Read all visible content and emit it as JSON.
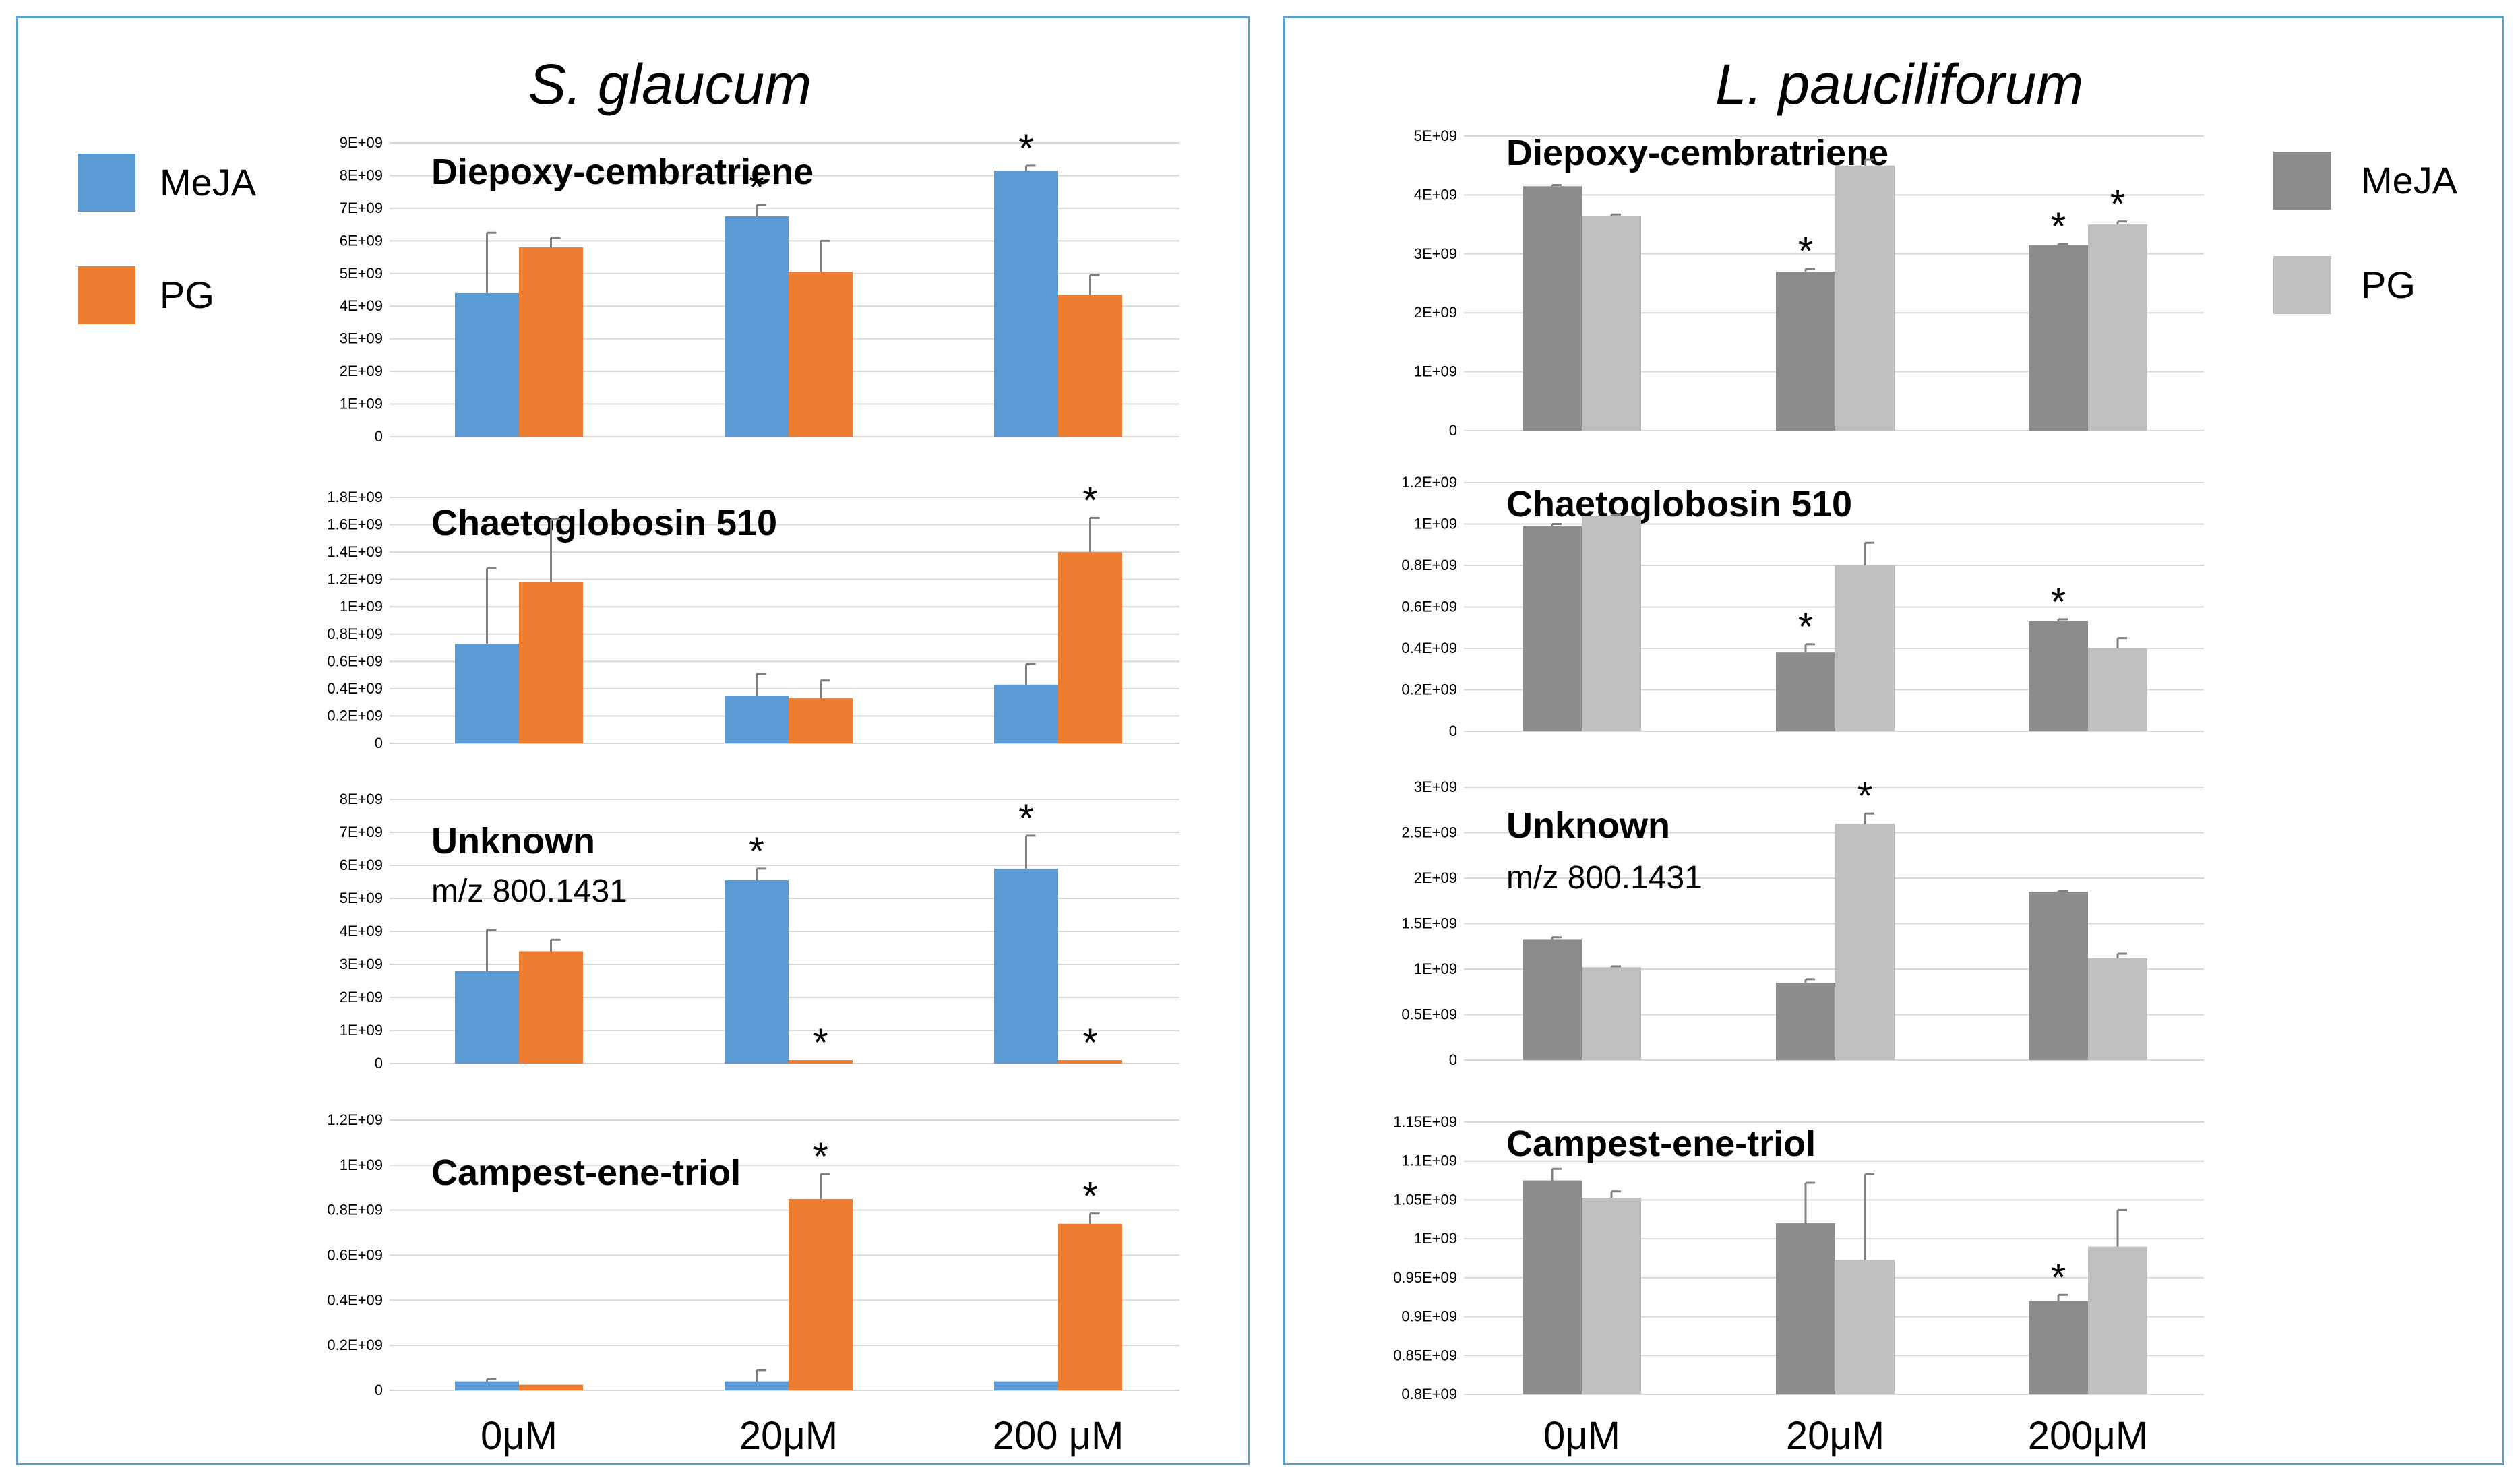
{
  "left_panel": {
    "title": "S. glaucum",
    "legend": [
      {
        "label": "MeJA",
        "color": "#5b9bd5"
      },
      {
        "label": "PG",
        "color": "#ed7d31"
      }
    ],
    "colors": [
      "#5b9bd5",
      "#ed7d31"
    ],
    "categories": [
      "0μM",
      "20μM",
      "200 μM"
    ]
  },
  "right_panel": {
    "title": "L. pauciliforum",
    "legend": [
      {
        "label": "MeJA",
        "color": "#8c8c8c"
      },
      {
        "label": "PG",
        "color": "#bfbfbf"
      }
    ],
    "colors": [
      "#8c8c8c",
      "#bfbfbf"
    ],
    "categories": [
      "0μM",
      "20μM",
      "200μM"
    ]
  },
  "chart_data": [
    {
      "type": "bar",
      "panel": "left",
      "title": "Diepoxy-cembratriene",
      "categories": [
        "0μM",
        "20μM",
        "200 μM"
      ],
      "ylim": [
        0,
        9000000000.0
      ],
      "ticks": [
        "0",
        "1E+09",
        "2E+09",
        "3E+09",
        "4E+09",
        "5E+09",
        "6E+09",
        "7E+09",
        "8E+09",
        "9E+09"
      ],
      "series": [
        {
          "name": "MeJA",
          "values": [
            4400000000.0,
            6750000000.0,
            8150000000.0
          ],
          "errors": [
            1850000000.0,
            350000000.0,
            150000000.0
          ],
          "significant": [
            false,
            true,
            true
          ]
        },
        {
          "name": "PG",
          "values": [
            5800000000.0,
            5050000000.0,
            4350000000.0
          ],
          "errors": [
            300000000.0,
            950000000.0,
            600000000.0
          ],
          "significant": [
            false,
            false,
            false
          ]
        }
      ]
    },
    {
      "type": "bar",
      "panel": "left",
      "title": "Chaetoglobosin 510",
      "categories": [
        "0μM",
        "20μM",
        "200 μM"
      ],
      "ylim": [
        0,
        1800000000.0
      ],
      "ticks": [
        "0",
        "0.2E+09",
        "0.4E+09",
        "0.6E+09",
        "0.8E+09",
        "1E+09",
        "1.2E+09",
        "1.4E+09",
        "1.6E+09",
        "1.8E+09"
      ],
      "series": [
        {
          "name": "MeJA",
          "values": [
            730000000.0,
            350000000.0,
            430000000.0
          ],
          "errors": [
            550000000.0,
            160000000.0,
            150000000.0
          ],
          "significant": [
            false,
            false,
            false
          ]
        },
        {
          "name": "PG",
          "values": [
            1180000000.0,
            330000000.0,
            1400000000.0
          ],
          "errors": [
            460000000.0,
            130000000.0,
            250000000.0
          ],
          "significant": [
            false,
            false,
            true
          ]
        }
      ]
    },
    {
      "type": "bar",
      "panel": "left",
      "title": "Unknown",
      "subtitle": "m/z 800.1431",
      "categories": [
        "0μM",
        "20μM",
        "200 μM"
      ],
      "ylim": [
        0,
        8000000000.0
      ],
      "ticks": [
        "0",
        "1E+09",
        "2E+09",
        "3E+09",
        "4E+09",
        "5E+09",
        "6E+09",
        "7E+09",
        "8E+09"
      ],
      "series": [
        {
          "name": "MeJA",
          "values": [
            2800000000.0,
            5550000000.0,
            5900000000.0
          ],
          "errors": [
            1250000000.0,
            350000000.0,
            1000000000.0
          ],
          "significant": [
            false,
            true,
            true
          ]
        },
        {
          "name": "PG",
          "values": [
            3400000000.0,
            100000000.0,
            100000000.0
          ],
          "errors": [
            350000000.0,
            0.0,
            0.0
          ],
          "significant": [
            false,
            true,
            true
          ]
        }
      ]
    },
    {
      "type": "bar",
      "panel": "left",
      "title": "Campest-ene-triol",
      "categories": [
        "0μM",
        "20μM",
        "200 μM"
      ],
      "ylim": [
        0,
        1200000000.0
      ],
      "ticks": [
        "0",
        "0.2E+09",
        "0.4E+09",
        "0.6E+09",
        "0.8E+09",
        "1E+09",
        "1.2E+09"
      ],
      "series": [
        {
          "name": "MeJA",
          "values": [
            40000000.0,
            40000000.0,
            40000000.0
          ],
          "errors": [
            10000000.0,
            50000000.0,
            0.0
          ],
          "significant": [
            false,
            false,
            false
          ]
        },
        {
          "name": "PG",
          "values": [
            25000000.0,
            850000000.0,
            740000000.0
          ],
          "errors": [
            0.0,
            110000000.0,
            45000000.0
          ],
          "significant": [
            false,
            true,
            true
          ]
        }
      ]
    },
    {
      "type": "bar",
      "panel": "right",
      "title": "Diepoxy-cembratriene",
      "categories": [
        "0μM",
        "20μM",
        "200μM"
      ],
      "ylim": [
        0,
        5000000000.0
      ],
      "ticks": [
        "0",
        "1E+09",
        "2E+09",
        "3E+09",
        "4E+09",
        "5E+09"
      ],
      "series": [
        {
          "name": "MeJA",
          "values": [
            4150000000.0,
            2700000000.0,
            3150000000.0
          ],
          "errors": [
            20000000.0,
            50000000.0,
            20000000.0
          ],
          "significant": [
            false,
            true,
            true
          ]
        },
        {
          "name": "PG",
          "values": [
            3650000000.0,
            4500000000.0,
            3500000000.0
          ],
          "errors": [
            20000000.0,
            100000000.0,
            50000000.0
          ],
          "significant": [
            false,
            false,
            true
          ]
        }
      ]
    },
    {
      "type": "bar",
      "panel": "right",
      "title": "Chaetoglobosin 510",
      "categories": [
        "0μM",
        "20μM",
        "200μM"
      ],
      "ylim": [
        0,
        1200000000.0
      ],
      "ticks": [
        "0",
        "0.2E+09",
        "0.4E+09",
        "0.6E+09",
        "0.8E+09",
        "1E+09",
        "1.2E+09"
      ],
      "series": [
        {
          "name": "MeJA",
          "values": [
            990000000.0,
            380000000.0,
            530000000.0
          ],
          "errors": [
            10000000.0,
            40000000.0,
            10000000.0
          ],
          "significant": [
            false,
            true,
            true
          ]
        },
        {
          "name": "PG",
          "values": [
            1040000000.0,
            800000000.0,
            400000000.0
          ],
          "errors": [
            5000000.0,
            110000000.0,
            50000000.0
          ],
          "significant": [
            false,
            false,
            false
          ]
        }
      ]
    },
    {
      "type": "bar",
      "panel": "right",
      "title": "Unknown",
      "subtitle": "m/z 800.1431",
      "categories": [
        "0μM",
        "20μM",
        "200μM"
      ],
      "ylim": [
        0,
        3000000000.0
      ],
      "ticks": [
        "0",
        "0.5E+09",
        "1E+09",
        "1.5E+09",
        "2E+09",
        "2.5E+09",
        "3E+09"
      ],
      "series": [
        {
          "name": "MeJA",
          "values": [
            1330000000.0,
            850000000.0,
            1850000000.0
          ],
          "errors": [
            20000000.0,
            40000000.0,
            10000000.0
          ],
          "significant": [
            false,
            false,
            false
          ]
        },
        {
          "name": "PG",
          "values": [
            1020000000.0,
            2600000000.0,
            1120000000.0
          ],
          "errors": [
            10000000.0,
            110000000.0,
            50000000.0
          ],
          "significant": [
            false,
            true,
            false
          ]
        }
      ]
    },
    {
      "type": "bar",
      "panel": "right",
      "title": "Campest-ene-triol",
      "categories": [
        "0μM",
        "20μM",
        "200μM"
      ],
      "ylim": [
        800000000.0,
        1150000000.0
      ],
      "ticks": [
        "0.8E+09",
        "0.85E+09",
        "0.9E+09",
        "0.95E+09",
        "1E+09",
        "1.05E+09",
        "1.1E+09",
        "1.15E+09"
      ],
      "series": [
        {
          "name": "MeJA",
          "values": [
            1075000000.0,
            1020000000.0,
            920000000.0
          ],
          "errors": [
            15000000.0,
            52000000.0,
            8000000.0
          ],
          "significant": [
            false,
            false,
            true
          ]
        },
        {
          "name": "PG",
          "values": [
            1053000000.0,
            973000000.0,
            990000000.0
          ],
          "errors": [
            8000000.0,
            110000000.0,
            47000000.0
          ],
          "significant": [
            false,
            false,
            false
          ]
        }
      ]
    }
  ]
}
